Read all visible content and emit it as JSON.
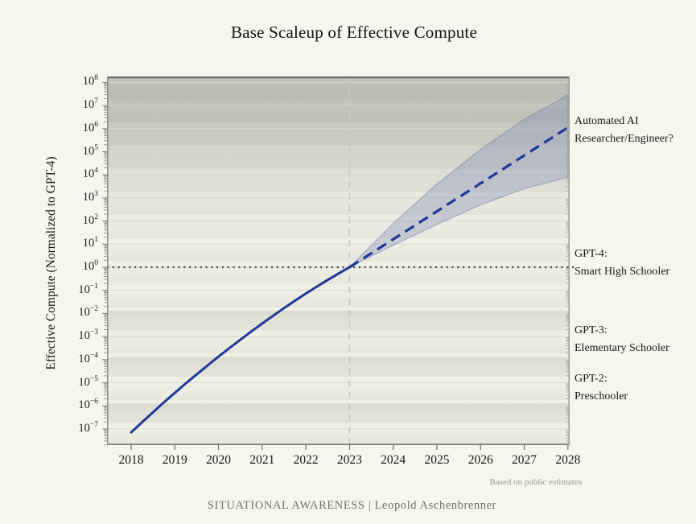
{
  "title": "Base Scaleup of Effective Compute",
  "footnote": "Based on public estimates",
  "footer_credit": "SITUATIONAL AWARENESS | Leopold Aschenbrenner",
  "chart_data": {
    "type": "line",
    "title": "Base Scaleup of Effective Compute",
    "xlabel": "",
    "ylabel": "Effective Compute (Normalized to GPT-4)",
    "y_scale": "log10",
    "x_ticks": [
      2018,
      2019,
      2020,
      2021,
      2022,
      2023,
      2024,
      2025,
      2026,
      2027,
      2028
    ],
    "y_tick_exponents": [
      8,
      7,
      6,
      5,
      4,
      3,
      2,
      1,
      0,
      -1,
      -2,
      -3,
      -4,
      -5,
      -6,
      -7
    ],
    "xlim": [
      2017.448,
      2028.04
    ],
    "ylim_log10": [
      -7.7,
      8.258
    ],
    "grid": "horizontal",
    "series": [
      {
        "name": "historical-effective-compute",
        "style": "solid",
        "x": [
          2018,
          2018.25,
          2018.5,
          2018.75,
          2019,
          2019.25,
          2019.5,
          2019.75,
          2020,
          2020.25,
          2020.5,
          2020.75,
          2021,
          2021.25,
          2021.5,
          2021.75,
          2022,
          2022.25,
          2022.5,
          2022.75,
          2023
        ],
        "log10_values": [
          -7.15,
          -6.71,
          -6.28,
          -5.85,
          -5.44,
          -5.03,
          -4.64,
          -4.25,
          -3.87,
          -3.5,
          -3.14,
          -2.78,
          -2.44,
          -2.1,
          -1.77,
          -1.45,
          -1.14,
          -0.84,
          -0.55,
          -0.27,
          0
        ]
      },
      {
        "name": "projected-effective-compute",
        "style": "dashed",
        "x": [
          2023,
          2028
        ],
        "log10_values": [
          0,
          6.05
        ]
      }
    ],
    "uncertainty_band": {
      "x": [
        2023,
        2024,
        2025,
        2026,
        2027,
        2028
      ],
      "upper_log10": [
        0,
        1.9,
        3.6,
        5.1,
        6.4,
        7.45
      ],
      "lower_log10": [
        0,
        0.95,
        1.85,
        2.7,
        3.4,
        3.9
      ]
    },
    "reference_line": {
      "log10_value": 0,
      "style": "dotted"
    },
    "vline_year": 2023,
    "annotations": [
      {
        "id": "automated-ai",
        "lines": [
          "Automated AI",
          "Researcher/Engineer?"
        ],
        "anchor_log10": 5.92
      },
      {
        "id": "gpt4",
        "lines": [
          "GPT-4:",
          "Smart High Schooler"
        ],
        "anchor_log10": 0.17
      },
      {
        "id": "gpt3",
        "lines": [
          "GPT-3:",
          "Elementary Schooler"
        ],
        "anchor_log10": -3.14
      },
      {
        "id": "gpt2",
        "lines": [
          "GPT-2:",
          "Preschooler"
        ],
        "anchor_log10": -5.23
      }
    ],
    "colors": {
      "line": "#1e3a96",
      "band_fill": "rgba(124,132,178,0.33)",
      "band_edge": "rgba(108,118,168,0.55)",
      "reference_line": "#4e4e48",
      "vline": "#cbcbc3",
      "grid": "#d7d7cf",
      "background": "#f5f5ec"
    }
  }
}
